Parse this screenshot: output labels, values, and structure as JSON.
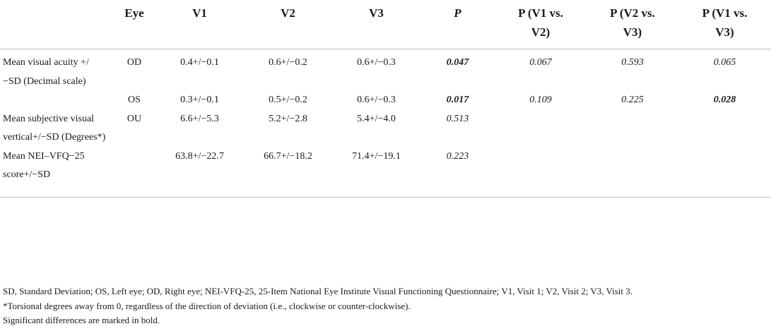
{
  "table": {
    "headers": [
      "",
      "Eye",
      "V1",
      "V2",
      "V3",
      "P",
      "P (V1 vs.\nV2)",
      "P (V2 vs.\nV3)",
      "P (V1 vs.\nV3)"
    ],
    "rows": [
      {
        "label": "Mean visual acuity +/−SD (Decimal scale)",
        "eye": "OD",
        "v1": "0.4+/−0.1",
        "v2": "0.6+/−0.2",
        "v3": "0.6+/−0.3",
        "p": "0.047",
        "p_v1_v2": "0.067",
        "p_v2_v3": "0.593",
        "p_v1_v3": "0.065"
      },
      {
        "label": "",
        "eye": "OS",
        "v1": "0.3+/−0.1",
        "v2": "0.5+/−0.2",
        "v3": "0.6+/−0.3",
        "p": "0.017",
        "p_v1_v2": "0.109",
        "p_v2_v3": "0.225",
        "p_v1_v3": "0.028"
      },
      {
        "label": "Mean subjective visual vertical+/−SD (Degrees*)",
        "eye": "OU",
        "v1": "6.6+/−5.3",
        "v2": "5.2+/−2.8",
        "v3": "5.4+/−4.0",
        "p": "0.513",
        "p_v1_v2": "",
        "p_v2_v3": "",
        "p_v1_v3": ""
      },
      {
        "label": "Mean NEI–VFQ−25 score+/−SD",
        "eye": "",
        "v1": "63.8+/−22.7",
        "v2": "66.7+/−18.2",
        "v3": "71.4+/−19.1",
        "p": "0.223",
        "p_v1_v2": "",
        "p_v2_v3": "",
        "p_v1_v3": ""
      }
    ]
  },
  "notes": [
    "SD, Standard Deviation; OS, Left eye; OD, Right eye; NEI-VFQ-25, 25-Item National Eye Institute Visual Functioning Questionnaire; V1, Visit 1; V2, Visit 2; V3, Visit 3.",
    "*Torsional degrees away from 0, regardless of the direction of deviation (i.e., clockwise or counter-clockwise).",
    "Significant differences are marked in bold."
  ]
}
